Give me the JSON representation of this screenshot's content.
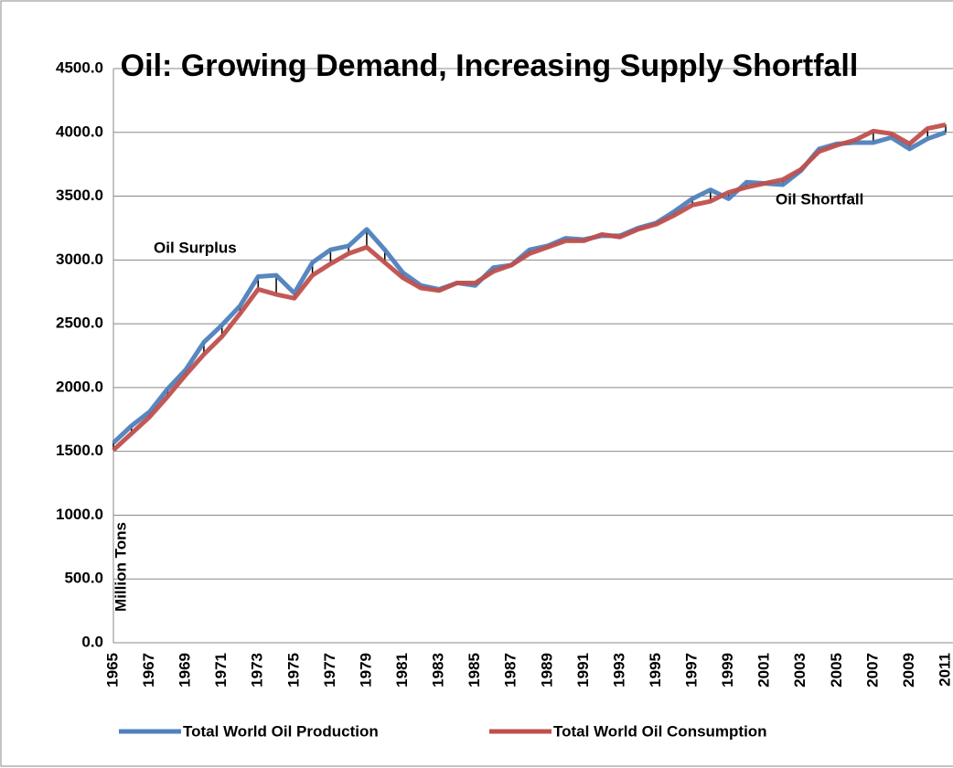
{
  "chart_data": {
    "type": "line",
    "title": "Oil: Growing Demand, Increasing Supply Shortfall",
    "y_label": "Million Tons",
    "annotations": [
      "Oil Surplus",
      "Oil Shortfall"
    ],
    "categories": [
      "1965",
      null,
      "1967",
      null,
      "1969",
      null,
      "1971",
      null,
      "1973",
      null,
      "1975",
      null,
      "1977",
      null,
      "1979",
      null,
      "1981",
      null,
      "1983",
      null,
      "1985",
      null,
      "1987",
      null,
      "1989",
      null,
      "1991",
      null,
      "1993",
      null,
      "1995",
      null,
      "1997",
      null,
      "1999",
      null,
      "2001",
      null,
      "2003",
      null,
      "2005",
      null,
      "2007",
      null,
      "2009",
      null,
      "2011"
    ],
    "series": [
      {
        "name": "Total World Oil Production",
        "color": "#4f81bd",
        "values": [
          1567,
          1700,
          1810,
          1990,
          2140,
          2355,
          2490,
          2640,
          2870,
          2880,
          2740,
          2980,
          3080,
          3110,
          3240,
          3080,
          2900,
          2800,
          2770,
          2820,
          2800,
          2940,
          2960,
          3080,
          3110,
          3170,
          3160,
          3190,
          3190,
          3250,
          3290,
          3380,
          3480,
          3550,
          3480,
          3610,
          3600,
          3590,
          3700,
          3870,
          3910,
          3920,
          3920,
          3960,
          3870,
          3950,
          4000
        ]
      },
      {
        "name": "Total World Oil Consumption",
        "color": "#c0504d",
        "values": [
          1510,
          1640,
          1770,
          1930,
          2100,
          2260,
          2400,
          2580,
          2770,
          2730,
          2700,
          2880,
          2970,
          3050,
          3100,
          2980,
          2860,
          2780,
          2760,
          2820,
          2820,
          2910,
          2960,
          3050,
          3100,
          3150,
          3150,
          3200,
          3180,
          3240,
          3280,
          3350,
          3430,
          3460,
          3530,
          3570,
          3600,
          3630,
          3710,
          3850,
          3900,
          3940,
          4010,
          3990,
          3910,
          4030,
          4060
        ]
      }
    ],
    "ylim": [
      0,
      4500
    ],
    "yticks": [
      {
        "value": 0,
        "label": "0.0"
      },
      {
        "value": 500,
        "label": "500.0"
      },
      {
        "value": 1000,
        "label": "1000.0"
      },
      {
        "value": 1500,
        "label": "1500.0"
      },
      {
        "value": 2000,
        "label": "2000.0"
      },
      {
        "value": 2500,
        "label": "2500.0"
      },
      {
        "value": 3000,
        "label": "3000.0"
      },
      {
        "value": 3500,
        "label": "3500.0"
      },
      {
        "value": 4000,
        "label": "4000.0"
      },
      {
        "value": 4500,
        "label": "4500.0"
      }
    ],
    "grid": true,
    "high_low_lines": true,
    "legend": "bottom"
  }
}
